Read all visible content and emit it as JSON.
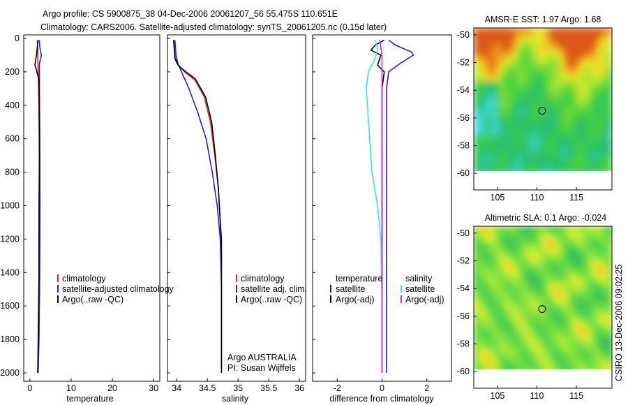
{
  "header": {
    "line1": "Argo profile: CS 5900875_38 04-Dec-2006 20061207_56 55.475S 110.651E",
    "line2": "Climatology: CARS2006. Satellite-adjusted climatology: synTS_20061205.nc (0.15d later)"
  },
  "side_credit": "CSIRO 13-Dec-2006 09:02:25",
  "colors": {
    "climatology": "#e8201c",
    "satellite": "#1c1cf0",
    "argo": "#000000",
    "sal_satellite": "#2ee8e8",
    "sal_argo": "#e81ce8"
  },
  "chart_data": [
    {
      "id": "temperature",
      "type": "line",
      "xlabel": "temperature",
      "xlim": [
        -1.5,
        31.5
      ],
      "xticks": [
        0,
        10,
        20,
        30
      ],
      "ylim": [
        0,
        2050
      ],
      "yticks": [
        0,
        200,
        400,
        600,
        800,
        1000,
        1200,
        1400,
        1600,
        1800,
        2000
      ],
      "y_reversed": true,
      "legend": {
        "position": "lower-right",
        "entries": [
          "climatology",
          "satellite-adjusted climatology",
          "Argo(..raw -QC)"
        ]
      },
      "series": [
        {
          "name": "climatology",
          "color": "#e8201c",
          "points": [
            [
              1.8,
              10
            ],
            [
              1.85,
              40
            ],
            [
              1.9,
              80
            ],
            [
              1.95,
              150
            ],
            [
              2.1,
              300
            ],
            [
              2.25,
              600
            ],
            [
              2.3,
              1000
            ],
            [
              2.25,
              1400
            ],
            [
              2.1,
              1800
            ],
            [
              1.9,
              2000
            ]
          ]
        },
        {
          "name": "satellite-adjusted climatology",
          "color": "#1c1cf0",
          "points": [
            [
              2.3,
              10
            ],
            [
              2.4,
              50
            ],
            [
              2.6,
              80
            ],
            [
              2.8,
              100
            ],
            [
              2.3,
              150
            ],
            [
              2.3,
              300
            ],
            [
              2.4,
              600
            ],
            [
              2.45,
              1000
            ],
            [
              2.4,
              1400
            ],
            [
              2.2,
              1800
            ],
            [
              2.0,
              2000
            ]
          ]
        },
        {
          "name": "Argo(..raw -QC)",
          "color": "#000000",
          "points": [
            [
              2.0,
              10
            ],
            [
              1.8,
              50
            ],
            [
              1.6,
              100
            ],
            [
              1.2,
              160
            ],
            [
              1.5,
              180
            ],
            [
              2.2,
              250
            ],
            [
              2.3,
              400
            ],
            [
              2.3,
              700
            ],
            [
              2.2,
              1000
            ],
            [
              2.2,
              1400
            ],
            [
              2.0,
              1800
            ],
            [
              1.9,
              2000
            ]
          ]
        }
      ]
    },
    {
      "id": "salinity",
      "type": "line",
      "xlabel": "salinity",
      "xlim": [
        33.85,
        36.1
      ],
      "xticks": [
        34,
        34.5,
        35,
        35.5,
        36
      ],
      "ylim": [
        0,
        2050
      ],
      "yticks": [
        0,
        200,
        400,
        600,
        800,
        1000,
        1200,
        1400,
        1600,
        1800,
        2000
      ],
      "y_reversed": true,
      "legend": {
        "position": "lower-right",
        "entries": [
          "climatology",
          "satellite adj. clim.",
          "Argo(..raw -QC)"
        ]
      },
      "annotation": [
        "Argo AUSTRALIA",
        "PI: Susan Wijffels"
      ],
      "series": [
        {
          "name": "climatology",
          "color": "#e8201c",
          "points": [
            [
              33.95,
              10
            ],
            [
              33.96,
              60
            ],
            [
              33.98,
              120
            ],
            [
              34.03,
              160
            ],
            [
              34.13,
              200
            ],
            [
              34.3,
              250
            ],
            [
              34.45,
              350
            ],
            [
              34.55,
              500
            ],
            [
              34.62,
              700
            ],
            [
              34.68,
              900
            ],
            [
              34.71,
              1100
            ],
            [
              34.73,
              1300
            ],
            [
              34.73,
              1600
            ],
            [
              34.73,
              2000
            ]
          ]
        },
        {
          "name": "satellite adj. clim.",
          "color": "#1c1cf0",
          "points": [
            [
              33.97,
              10
            ],
            [
              33.98,
              50
            ],
            [
              33.99,
              100
            ],
            [
              34.02,
              150
            ],
            [
              34.08,
              200
            ],
            [
              34.2,
              300
            ],
            [
              34.35,
              450
            ],
            [
              34.48,
              600
            ],
            [
              34.58,
              800
            ],
            [
              34.66,
              1000
            ],
            [
              34.71,
              1200
            ],
            [
              34.73,
              1500
            ],
            [
              34.73,
              2000
            ]
          ]
        },
        {
          "name": "Argo(..raw -QC)",
          "color": "#000000",
          "points": [
            [
              33.95,
              10
            ],
            [
              33.96,
              60
            ],
            [
              33.97,
              120
            ],
            [
              34.02,
              160
            ],
            [
              34.15,
              200
            ],
            [
              34.3,
              240
            ],
            [
              34.47,
              350
            ],
            [
              34.57,
              500
            ],
            [
              34.63,
              700
            ],
            [
              34.68,
              900
            ],
            [
              34.71,
              1100
            ],
            [
              34.73,
              1200
            ],
            [
              34.73,
              1500
            ],
            [
              34.73,
              2000
            ]
          ]
        }
      ]
    },
    {
      "id": "difference",
      "type": "line",
      "xlabel": "difference from climatology",
      "xlim": [
        -3.1,
        3.1
      ],
      "xticks": [
        -2,
        0,
        2
      ],
      "xticklabels": [
        "-2",
        "0",
        "2"
      ],
      "ylim": [
        0,
        2050
      ],
      "yticks": [
        0,
        200,
        400,
        600,
        800,
        1000,
        1200,
        1400,
        1600,
        1800,
        2000
      ],
      "y_reversed": true,
      "legend": {
        "position": "lower",
        "groups": [
          {
            "title": "temperature",
            "entries": [
              "satellite",
              "Argo(-adj)"
            ]
          },
          {
            "title": "salinity",
            "entries": [
              "satellite",
              "Argo(-adj)"
            ]
          }
        ]
      },
      "series": [
        {
          "name": "temperature satellite",
          "color": "#1c1cf0",
          "points": [
            [
              0.3,
              10
            ],
            [
              0.6,
              40
            ],
            [
              1.3,
              80
            ],
            [
              1.4,
              100
            ],
            [
              0.8,
              150
            ],
            [
              0.3,
              200
            ],
            [
              0.2,
              300
            ],
            [
              0.2,
              600
            ],
            [
              0.2,
              1000
            ],
            [
              0.2,
              1400
            ],
            [
              0.2,
              1800
            ],
            [
              0.2,
              2000
            ]
          ]
        },
        {
          "name": "temperature Argo(-adj)",
          "color": "#000000",
          "points": [
            [
              0.1,
              10
            ],
            [
              -0.3,
              40
            ],
            [
              -0.5,
              70
            ],
            [
              -0.05,
              100
            ],
            [
              -0.2,
              160
            ],
            [
              0.1,
              200
            ],
            [
              0.0,
              300
            ],
            [
              0.0,
              1000
            ],
            [
              0.0,
              2000
            ]
          ]
        },
        {
          "name": "salinity satellite",
          "color": "#2ee8e8",
          "points": [
            [
              -0.3,
              10
            ],
            [
              -0.2,
              60
            ],
            [
              -0.3,
              120
            ],
            [
              -0.6,
              200
            ],
            [
              -0.7,
              300
            ],
            [
              -0.6,
              500
            ],
            [
              -0.45,
              800
            ],
            [
              -0.2,
              1000
            ],
            [
              -0.05,
              1200
            ],
            [
              0.0,
              1600
            ],
            [
              0.0,
              2000
            ]
          ]
        },
        {
          "name": "salinity Argo(-adj)",
          "color": "#e81ce8",
          "points": [
            [
              -0.1,
              10
            ],
            [
              -0.05,
              60
            ],
            [
              0.0,
              100
            ],
            [
              0.0,
              200
            ],
            [
              0.0,
              2000
            ]
          ]
        }
      ]
    },
    {
      "id": "sst_map",
      "type": "heatmap",
      "title": "AMSR-E SST: 1.97 Argo: 1.68",
      "xlim": [
        102,
        119.5
      ],
      "xticks": [
        105,
        110,
        115
      ],
      "ylim": [
        -61.2,
        -49.5
      ],
      "yticks": [
        -50,
        -52,
        -54,
        -56,
        -58,
        -60
      ],
      "data_ylim": [
        -60,
        -49.5
      ],
      "marker": [
        110.65,
        -55.48
      ]
    },
    {
      "id": "sla_map",
      "type": "heatmap",
      "title": "Altimetric SLA: 0.1 Argo: -0.024",
      "xlim": [
        102,
        119.5
      ],
      "xticks": [
        105,
        110,
        115
      ],
      "ylim": [
        -61.2,
        -49.5
      ],
      "yticks": [
        -50,
        -52,
        -54,
        -56,
        -58,
        -60
      ],
      "data_ylim": [
        -60,
        -49.5
      ],
      "marker": [
        110.65,
        -55.48
      ]
    }
  ]
}
